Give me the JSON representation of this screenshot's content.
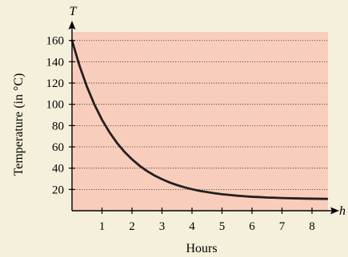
{
  "colors": {
    "background": "#f5f0dc",
    "plot_area": "#f9cdbc",
    "curve": "#231f20",
    "gridline": "#333333"
  },
  "chart_data": {
    "type": "line",
    "title": "",
    "xlabel": "Hours",
    "ylabel": "Temperature (in °C)",
    "x_axis_variable": "h",
    "y_axis_variable": "T",
    "xlim": [
      0,
      8.5
    ],
    "ylim": [
      0,
      170
    ],
    "x_ticks": [
      1,
      2,
      3,
      4,
      5,
      6,
      7,
      8
    ],
    "x_tick_labels": [
      "1",
      "2",
      "3",
      "4",
      "5",
      "6",
      "7",
      "8"
    ],
    "y_ticks": [
      20,
      40,
      60,
      80,
      100,
      120,
      140,
      160
    ],
    "y_tick_labels": [
      "20",
      "40",
      "60",
      "80",
      "100",
      "120",
      "140",
      "160"
    ],
    "grid": "horizontal dotted",
    "legend": "none",
    "series": [
      {
        "x": [
          0,
          0.25,
          0.5,
          0.75,
          1,
          1.25,
          1.5,
          1.75,
          2,
          2.25,
          2.5,
          2.75,
          3,
          3.25,
          3.5,
          3.75,
          4,
          4.25,
          4.5,
          4.75,
          5,
          5.25,
          5.5,
          5.75,
          6,
          6.25,
          6.5,
          6.75,
          7,
          7.25,
          7.5,
          7.75,
          8,
          8.25,
          8.5
        ],
        "y": [
          160,
          136.3,
          116.4,
          99.6,
          85.5,
          73.7,
          63.7,
          55.3,
          48.3,
          42.3,
          37.3,
          33.1,
          29.6,
          26.6,
          24.1,
          22.0,
          20.2,
          18.7,
          17.5,
          16.4,
          15.5,
          14.8,
          14.1,
          13.6,
          13.1,
          12.8,
          12.4,
          12.2,
          11.9,
          11.7,
          11.6,
          11.4,
          11.3,
          11.2,
          11.1
        ]
      }
    ]
  }
}
